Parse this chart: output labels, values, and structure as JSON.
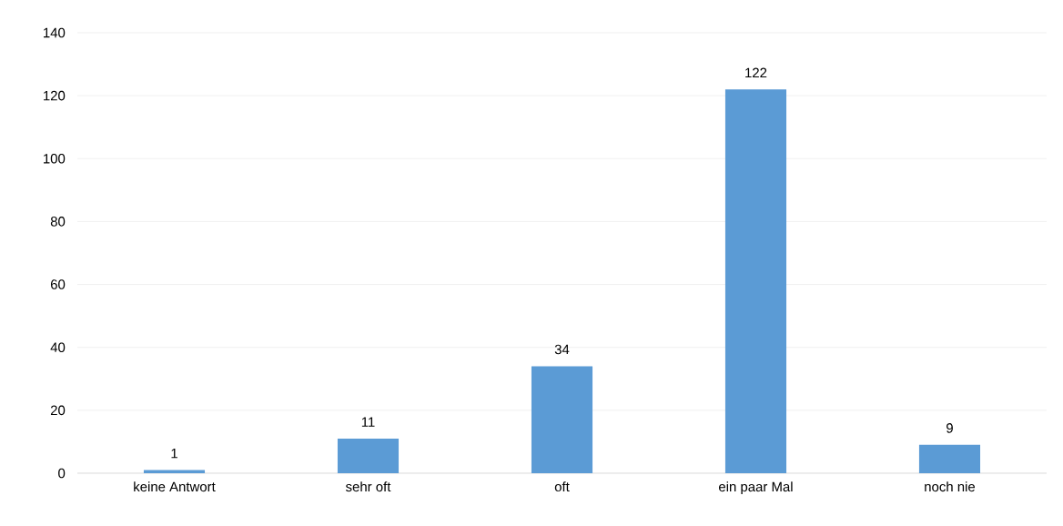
{
  "chart_data": {
    "type": "bar",
    "categories": [
      "keine Antwort",
      "sehr oft",
      "oft",
      "ein paar Mal",
      "noch nie"
    ],
    "values": [
      1,
      11,
      34,
      122,
      9
    ],
    "color": "#5b9bd5",
    "ylim": [
      0,
      140
    ],
    "yticks": [
      0,
      20,
      40,
      60,
      80,
      100,
      120,
      140
    ],
    "grid": "y",
    "data_labels": true
  }
}
